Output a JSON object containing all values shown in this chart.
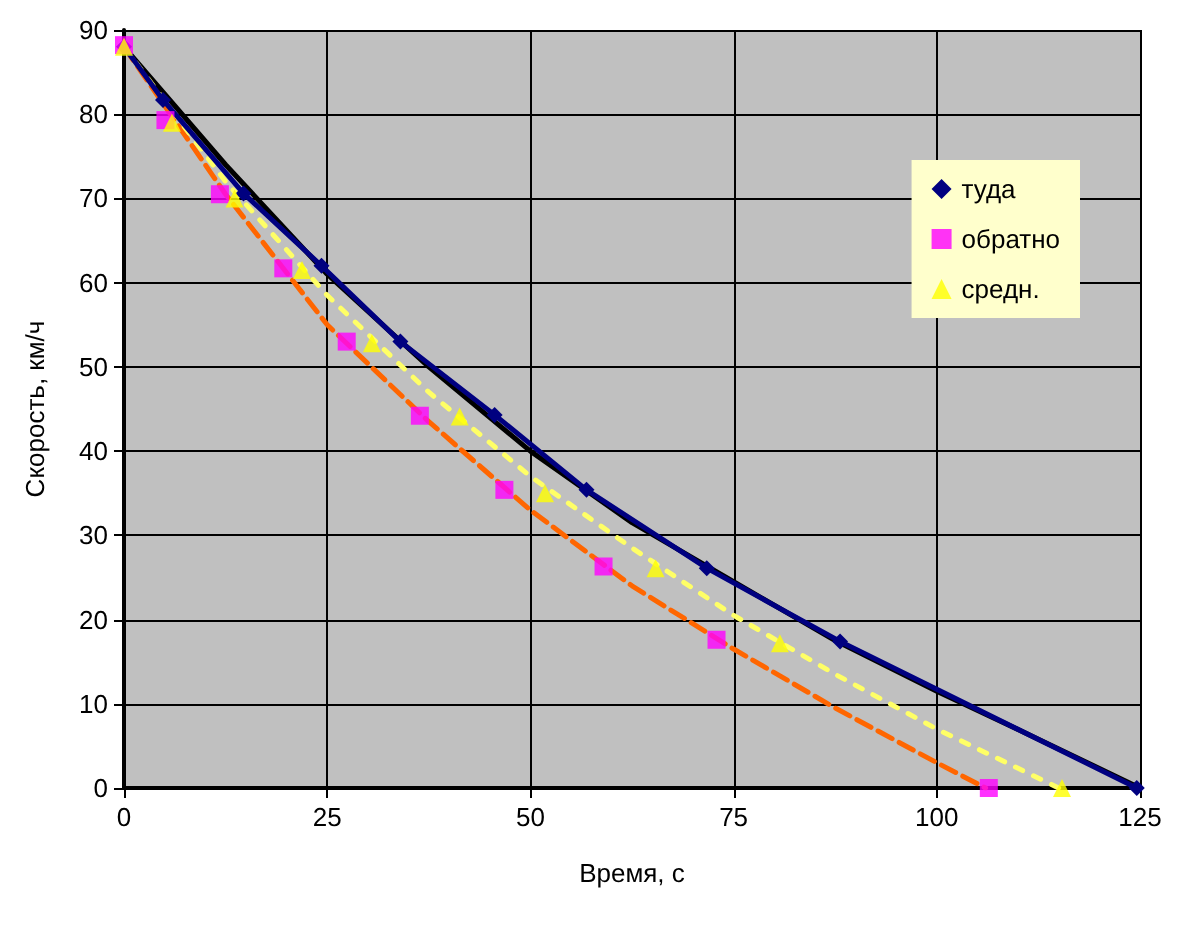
{
  "chart_data": {
    "type": "scatter",
    "xlabel": "Время, с",
    "ylabel": "Скорость, км/ч",
    "xlim": [
      0,
      125
    ],
    "xticks": [
      0,
      25,
      50,
      75,
      100,
      125
    ],
    "ylim": [
      0,
      90
    ],
    "yticks": [
      0,
      10,
      20,
      30,
      40,
      50,
      60,
      70,
      80,
      90
    ],
    "grid": true,
    "legend": "right",
    "series": [
      {
        "type": "line",
        "color": "#000000",
        "line_style": "solid",
        "marker": "none",
        "x": [
          0,
          12.5,
          25,
          37.5,
          50,
          62.5,
          75,
          87.5,
          100,
          112.5,
          125
        ],
        "values": [
          88,
          74,
          61,
          50,
          40,
          31.5,
          24.5,
          17.5,
          11.5,
          5.8,
          0
        ]
      },
      {
        "type": "line",
        "color": "#ff6600",
        "line_style": "dashed",
        "marker": "none",
        "x": [
          0,
          12.5,
          25,
          37.5,
          50,
          62.5,
          75,
          87.5,
          100,
          106
        ],
        "values": [
          88,
          70.5,
          55,
          43.5,
          33,
          24,
          16.5,
          9.5,
          3,
          0
        ]
      },
      {
        "type": "line",
        "color": "#ffff66",
        "line_style": "dotted",
        "marker": "none",
        "x": [
          0,
          12.5,
          25,
          37.5,
          50,
          62.5,
          75,
          87.5,
          100,
          115
        ],
        "values": [
          88,
          72,
          58.5,
          47,
          37,
          28.5,
          20.5,
          13.5,
          7,
          0
        ]
      },
      {
        "name": "туда",
        "type": "line",
        "color": "#000080",
        "line_style": "solid",
        "marker": "diamond",
        "x": [
          0,
          4.8,
          14.7,
          24.3,
          34,
          45.6,
          56.9,
          71.7,
          88.1,
          124.6
        ],
        "values": [
          88,
          81.7,
          70.6,
          62,
          53,
          44.3,
          35.4,
          26.1,
          17.4,
          0
        ]
      },
      {
        "name": "обратно",
        "color": "#ff00ff",
        "marker": "square",
        "x": [
          0,
          5.1,
          11.8,
          19.6,
          27.4,
          36.4,
          46.8,
          59,
          72.9,
          106.4
        ],
        "values": [
          88.2,
          79.3,
          70.5,
          61.7,
          53,
          44.2,
          35.4,
          26.3,
          17.6,
          0
        ]
      },
      {
        "name": "средн.",
        "color": "#ffff00",
        "marker": "triangle",
        "x": [
          0,
          5.9,
          13.6,
          21.9,
          30.5,
          41.3,
          51.8,
          65.4,
          80.7,
          115.4
        ],
        "values": [
          88,
          79,
          70,
          61.5,
          52.8,
          44.1,
          35,
          26.1,
          17.2,
          0
        ]
      }
    ]
  }
}
